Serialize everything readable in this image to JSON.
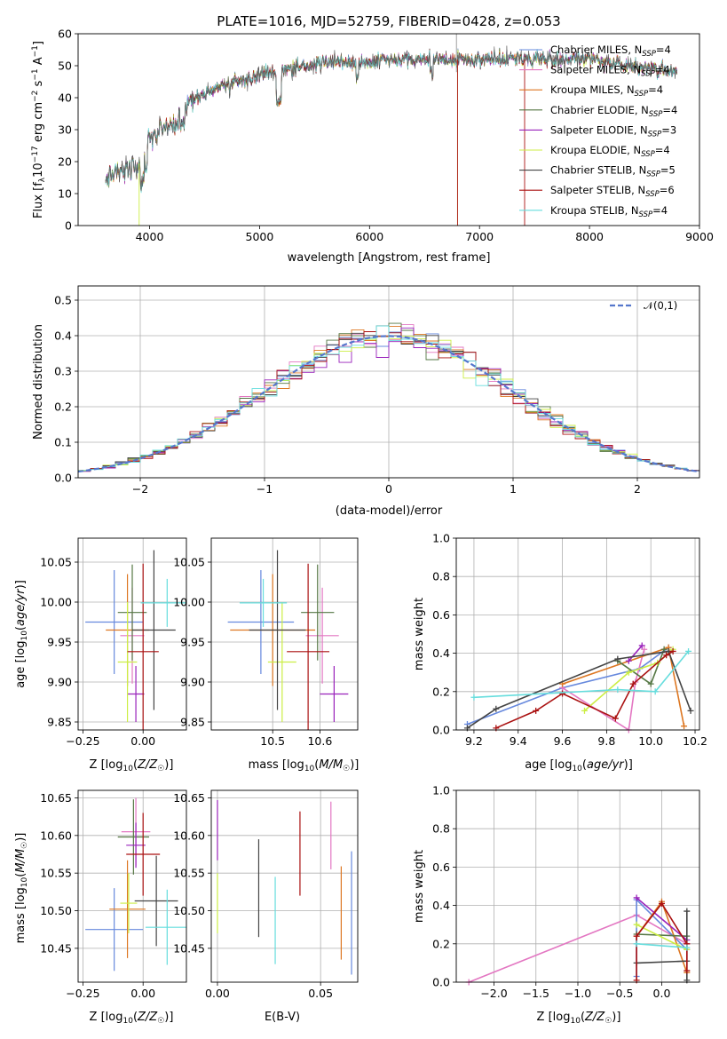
{
  "chart_data": [
    {
      "id": "spectrum",
      "type": "line",
      "title": "PLATE=1016, MJD=52759, FIBERID=0428, z=0.053",
      "xlabel": "wavelength [Angstrom, rest frame]",
      "ylabel": "Flux [f_λ10^-17 erg cm^-2 s^-1 A^-1]",
      "xlim": [
        3350,
        9000
      ],
      "ylim": [
        0,
        60
      ],
      "xticks": [
        4000,
        5000,
        6000,
        7000,
        8000,
        9000
      ],
      "yticks": [
        0,
        10,
        20,
        30,
        40,
        50,
        60
      ],
      "continuum": {
        "x": [
          3600,
          3700,
          3800,
          3900,
          4000,
          4100,
          4200,
          4300,
          4400,
          4500,
          4600,
          4800,
          5000,
          5200,
          5400,
          5600,
          5800,
          6000,
          6200,
          6400,
          6600,
          6800,
          7000,
          7200,
          7400,
          7600,
          7800,
          8000,
          8200,
          8400,
          8600,
          8800
        ],
        "y": [
          14,
          17,
          18,
          19,
          27,
          30,
          31,
          35,
          40,
          41,
          43,
          45,
          47,
          48,
          50,
          51,
          51,
          51,
          52,
          52,
          52,
          52,
          52,
          52,
          52,
          52,
          52,
          52,
          51,
          50,
          49,
          48
        ]
      },
      "fit_range": [
        3600,
        8800
      ],
      "series": [
        {
          "name": "Chabrier MILES, N_SSP=4",
          "color": "#6688dd"
        },
        {
          "name": "Salpeter MILES, N_SSP=4",
          "color": "#e377c2"
        },
        {
          "name": "Kroupa MILES, N_SSP=4",
          "color": "#dd7722"
        },
        {
          "name": "Chabrier ELODIE, N_SSP=4",
          "color": "#557744"
        },
        {
          "name": "Salpeter ELODIE, N_SSP=3",
          "color": "#9922bb"
        },
        {
          "name": "Kroupa ELODIE, N_SSP=4",
          "color": "#ccee44"
        },
        {
          "name": "Chabrier STELIB, N_SSP=5",
          "color": "#444444"
        },
        {
          "name": "Salpeter STELIB, N_SSP=6",
          "color": "#aa1111"
        },
        {
          "name": "Kroupa STELIB, N_SSP=4",
          "color": "#66dddd"
        }
      ],
      "legend": "top-right",
      "grid": false
    },
    {
      "id": "residuals",
      "type": "histogram",
      "xlabel": "(data-model)/error",
      "ylabel": "Normed distribution",
      "xlim": [
        -2.5,
        2.5
      ],
      "ylim": [
        0,
        0.54
      ],
      "xticks": [
        -2,
        -1,
        0,
        1,
        2
      ],
      "yticks": [
        0,
        0.1,
        0.2,
        0.3,
        0.4,
        0.5
      ],
      "bin_width": 0.1,
      "reference": {
        "name": "𝒩(0,1)",
        "color": "#5577cc",
        "style": "dashed"
      },
      "legend": "top-right",
      "grid": true
    },
    {
      "id": "age-vs-Z",
      "type": "errorbar",
      "xlabel": "Z [log10(Z/Z☉)]",
      "ylabel": "age [log10(age/yr)]",
      "xlim": [
        -0.27,
        0.18
      ],
      "ylim": [
        9.84,
        10.08
      ],
      "xticks": [
        -0.25,
        0,
        0.25
      ],
      "yticks": [
        9.85,
        9.9,
        9.95,
        10.0,
        10.05
      ],
      "points": [
        {
          "color": "#6688dd",
          "x": -0.12,
          "xerr": 0.12,
          "y": 9.975,
          "yerr": 0.065
        },
        {
          "color": "#e377c2",
          "x": -0.045,
          "xerr": 0.05,
          "y": 9.958,
          "yerr": 0.06
        },
        {
          "color": "#dd7722",
          "x": -0.065,
          "xerr": 0.09,
          "y": 9.965,
          "yerr": 0.07
        },
        {
          "color": "#557744",
          "x": -0.045,
          "xerr": 0.06,
          "y": 9.987,
          "yerr": 0.06
        },
        {
          "color": "#9922bb",
          "x": -0.03,
          "xerr": 0.035,
          "y": 9.885,
          "yerr": 0.035
        },
        {
          "color": "#ccee44",
          "x": -0.065,
          "xerr": 0.04,
          "y": 9.925,
          "yerr": 0.075
        },
        {
          "color": "#444444",
          "x": 0.045,
          "xerr": 0.09,
          "y": 9.965,
          "yerr": 0.1
        },
        {
          "color": "#aa1111",
          "x": 0.0,
          "xerr": 0.065,
          "y": 9.938,
          "yerr": 0.11
        },
        {
          "color": "#66dddd",
          "x": 0.1,
          "xerr": 0.11,
          "y": 9.999,
          "yerr": 0.03
        }
      ],
      "grid": true
    },
    {
      "id": "age-vs-mass",
      "type": "errorbar",
      "xlabel": "mass [log10(M/M☉)]",
      "ylabel": "",
      "xlim": [
        10.37,
        10.68
      ],
      "ylim": [
        9.84,
        10.08
      ],
      "xticks": [
        10.5,
        10.6
      ],
      "yticks": [
        9.85,
        9.9,
        9.95,
        10.0,
        10.05
      ],
      "points": [
        {
          "color": "#6688dd",
          "x": 10.475,
          "xerr": 0.07,
          "y": 9.975,
          "yerr": 0.065
        },
        {
          "color": "#e377c2",
          "x": 10.605,
          "xerr": 0.035,
          "y": 9.958,
          "yerr": 0.06
        },
        {
          "color": "#dd7722",
          "x": 10.5,
          "xerr": 0.09,
          "y": 9.965,
          "yerr": 0.07
        },
        {
          "color": "#557744",
          "x": 10.595,
          "xerr": 0.035,
          "y": 9.987,
          "yerr": 0.06
        },
        {
          "color": "#9922bb",
          "x": 10.63,
          "xerr": 0.03,
          "y": 9.885,
          "yerr": 0.035
        },
        {
          "color": "#ccee44",
          "x": 10.52,
          "xerr": 0.03,
          "y": 9.925,
          "yerr": 0.075
        },
        {
          "color": "#444444",
          "x": 10.51,
          "xerr": 0.06,
          "y": 9.965,
          "yerr": 0.1
        },
        {
          "color": "#aa1111",
          "x": 10.575,
          "xerr": 0.045,
          "y": 9.938,
          "yerr": 0.11
        },
        {
          "color": "#66dddd",
          "x": 10.48,
          "xerr": 0.05,
          "y": 9.999,
          "yerr": 0.03
        }
      ],
      "grid": true
    },
    {
      "id": "mass-weight-vs-age",
      "type": "line",
      "xlabel": "age [log10(age/yr)]",
      "ylabel": "mass weight",
      "xlim": [
        9.12,
        10.22
      ],
      "ylim": [
        0,
        1.0
      ],
      "xticks": [
        9.2,
        9.4,
        9.6,
        9.8,
        10.0,
        10.2
      ],
      "yticks": [
        0,
        0.2,
        0.4,
        0.6,
        0.8,
        1.0
      ],
      "series": [
        {
          "color": "#6688dd",
          "x": [
            9.17,
            9.6,
            9.95,
            10.08
          ],
          "y": [
            0.03,
            0.22,
            0.32,
            0.43
          ]
        },
        {
          "color": "#e377c2",
          "x": [
            9.6,
            9.9,
            9.93,
            9.97
          ],
          "y": [
            0.22,
            0.0,
            0.25,
            0.42
          ]
        },
        {
          "color": "#dd7722",
          "x": [
            9.6,
            10.08,
            10.15
          ],
          "y": [
            0.24,
            0.43,
            0.02
          ]
        },
        {
          "color": "#557744",
          "x": [
            9.85,
            10.0,
            10.06
          ],
          "y": [
            0.36,
            0.24,
            0.42
          ]
        },
        {
          "color": "#9922bb",
          "x": [
            9.9,
            9.96
          ],
          "y": [
            0.36,
            0.44
          ]
        },
        {
          "color": "#ccee44",
          "x": [
            9.7,
            9.9,
            10.03,
            10.1
          ],
          "y": [
            0.1,
            0.3,
            0.35,
            0.42
          ]
        },
        {
          "color": "#444444",
          "x": [
            9.17,
            9.3,
            9.85,
            10.08,
            10.18
          ],
          "y": [
            0.01,
            0.11,
            0.37,
            0.41,
            0.1
          ]
        },
        {
          "color": "#aa1111",
          "x": [
            9.3,
            9.48,
            9.6,
            9.84,
            9.92,
            10.07,
            10.1
          ],
          "y": [
            0.01,
            0.1,
            0.19,
            0.06,
            0.24,
            0.39,
            0.41
          ]
        },
        {
          "color": "#66dddd",
          "x": [
            9.2,
            9.85,
            10.02,
            10.17
          ],
          "y": [
            0.17,
            0.21,
            0.2,
            0.41
          ]
        }
      ],
      "grid": true
    },
    {
      "id": "mass-vs-Z",
      "type": "errorbar",
      "xlabel": "Z [log10(Z/Z☉)]",
      "ylabel": "mass [log10(M/M☉)]",
      "xlim": [
        -0.27,
        0.18
      ],
      "ylim": [
        10.405,
        10.66
      ],
      "xticks": [
        -0.25,
        0,
        0.25
      ],
      "yticks": [
        10.45,
        10.5,
        10.55,
        10.6,
        10.65
      ],
      "points": [
        {
          "color": "#6688dd",
          "x": -0.12,
          "xerr": 0.12,
          "y": 10.475,
          "yerr": 0.055
        },
        {
          "color": "#e377c2",
          "x": -0.03,
          "xerr": 0.06,
          "y": 10.605,
          "yerr": 0.045
        },
        {
          "color": "#dd7722",
          "x": -0.065,
          "xerr": 0.075,
          "y": 10.502,
          "yerr": 0.065
        },
        {
          "color": "#557744",
          "x": -0.04,
          "xerr": 0.065,
          "y": 10.598,
          "yerr": 0.05
        },
        {
          "color": "#9922bb",
          "x": -0.03,
          "xerr": 0.04,
          "y": 10.587,
          "yerr": 0.03
        },
        {
          "color": "#ccee44",
          "x": -0.06,
          "xerr": 0.035,
          "y": 10.51,
          "yerr": 0.04
        },
        {
          "color": "#444444",
          "x": 0.055,
          "xerr": 0.09,
          "y": 10.513,
          "yerr": 0.06
        },
        {
          "color": "#aa1111",
          "x": 0.0,
          "xerr": 0.07,
          "y": 10.575,
          "yerr": 0.055
        },
        {
          "color": "#66dddd",
          "x": 0.1,
          "xerr": 0.09,
          "y": 10.478,
          "yerr": 0.05
        }
      ],
      "grid": true
    },
    {
      "id": "mass-vs-ebv",
      "type": "errorbar",
      "xlabel": "E(B-V)",
      "ylabel": "",
      "xlim": [
        -0.003,
        0.068
      ],
      "ylim": [
        10.405,
        10.66
      ],
      "xticks": [
        0.0,
        0.05
      ],
      "yticks": [
        10.45,
        10.5,
        10.55,
        10.6,
        10.65
      ],
      "points": [
        {
          "color": "#9922bb",
          "x": 0.0,
          "xerr": 0,
          "y": 10.607,
          "yerr": 0.04
        },
        {
          "color": "#ccee44",
          "x": 0.0,
          "xerr": 0,
          "y": 10.51,
          "yerr": 0.04
        },
        {
          "color": "#444444",
          "x": 0.02,
          "xerr": 0,
          "y": 10.53,
          "yerr": 0.065
        },
        {
          "color": "#66dddd",
          "x": 0.028,
          "xerr": 0,
          "y": 10.487,
          "yerr": 0.058
        },
        {
          "color": "#aa1111",
          "x": 0.04,
          "xerr": 0,
          "y": 10.576,
          "yerr": 0.056
        },
        {
          "color": "#e377c2",
          "x": 0.055,
          "xerr": 0,
          "y": 10.6,
          "yerr": 0.045
        },
        {
          "color": "#dd7722",
          "x": 0.06,
          "xerr": 0,
          "y": 10.497,
          "yerr": 0.062
        },
        {
          "color": "#6688dd",
          "x": 0.065,
          "xerr": 0,
          "y": 10.497,
          "yerr": 0.082
        }
      ],
      "grid": true
    },
    {
      "id": "mass-weight-vs-Z",
      "type": "line",
      "xlabel": "Z [log10(Z/Z☉)]",
      "ylabel": "mass weight",
      "xlim": [
        -2.45,
        0.45
      ],
      "ylim": [
        0,
        1.0
      ],
      "xticks": [
        -2.0,
        -1.5,
        -1.0,
        -0.5,
        0.0
      ],
      "yticks": [
        0,
        0.2,
        0.4,
        0.6,
        0.8,
        1.0
      ],
      "series": [
        {
          "color": "#e377c2",
          "x": [
            -2.3,
            -0.3,
            0.3
          ],
          "y": [
            0.0,
            0.35,
            0.2
          ]
        },
        {
          "color": "#6688dd",
          "x": [
            -0.3,
            -0.3,
            0.3
          ],
          "y": [
            0.03,
            0.43,
            0.17
          ]
        },
        {
          "color": "#dd7722",
          "x": [
            -0.3,
            0.0,
            0.3
          ],
          "y": [
            0.24,
            0.42,
            0.05
          ]
        },
        {
          "color": "#557744",
          "x": [
            -0.3,
            0.3
          ],
          "y": [
            0.25,
            0.24
          ]
        },
        {
          "color": "#9922bb",
          "x": [
            -0.3,
            0.3
          ],
          "y": [
            0.44,
            0.22
          ]
        },
        {
          "color": "#ccee44",
          "x": [
            -0.3,
            0.3
          ],
          "y": [
            0.3,
            0.17
          ]
        },
        {
          "color": "#444444",
          "x": [
            -0.3,
            0.3,
            0.3,
            0.3
          ],
          "y": [
            0.1,
            0.11,
            0.37,
            0.01
          ]
        },
        {
          "color": "#aa1111",
          "x": [
            -0.3,
            -0.3,
            0.0,
            0.3,
            0.3
          ],
          "y": [
            0.01,
            0.24,
            0.41,
            0.2,
            0.06
          ]
        },
        {
          "color": "#66dddd",
          "x": [
            -0.3,
            0.3
          ],
          "y": [
            0.2,
            0.18
          ]
        }
      ],
      "grid": true
    }
  ]
}
